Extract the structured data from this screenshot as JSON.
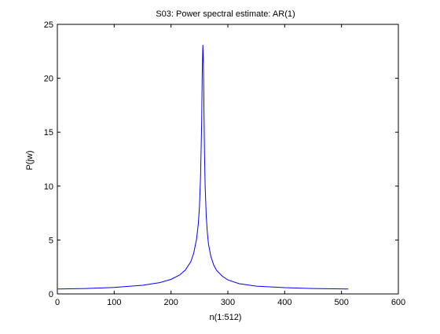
{
  "chart_data": {
    "type": "line",
    "title": "S03: Power spectral estimate: AR(1)",
    "xlabel": "n(1:512)",
    "ylabel": "P(jw)",
    "xlim": [
      0,
      600
    ],
    "ylim": [
      0,
      25
    ],
    "x_ticks": [
      0,
      100,
      200,
      300,
      400,
      500,
      600
    ],
    "y_ticks": [
      0,
      5,
      10,
      15,
      20,
      25
    ],
    "grid": false,
    "legend": "none",
    "series": [
      {
        "color": "#0000ff",
        "x": [
          1,
          50,
          100,
          150,
          180,
          200,
          215,
          225,
          235,
          240,
          245,
          248,
          250,
          252,
          254,
          255,
          256,
          257,
          258,
          259,
          260,
          262,
          264,
          266,
          270,
          275,
          280,
          290,
          300,
          320,
          350,
          400,
          450,
          512
        ],
        "y": [
          0.45,
          0.5,
          0.6,
          0.8,
          1.05,
          1.35,
          1.75,
          2.2,
          3.0,
          3.8,
          5.1,
          6.5,
          8.0,
          11.0,
          16.0,
          20.5,
          23.1,
          21.5,
          17.0,
          13.0,
          10.0,
          7.2,
          5.6,
          4.6,
          3.5,
          2.7,
          2.2,
          1.65,
          1.3,
          0.95,
          0.72,
          0.58,
          0.5,
          0.45
        ]
      }
    ]
  }
}
